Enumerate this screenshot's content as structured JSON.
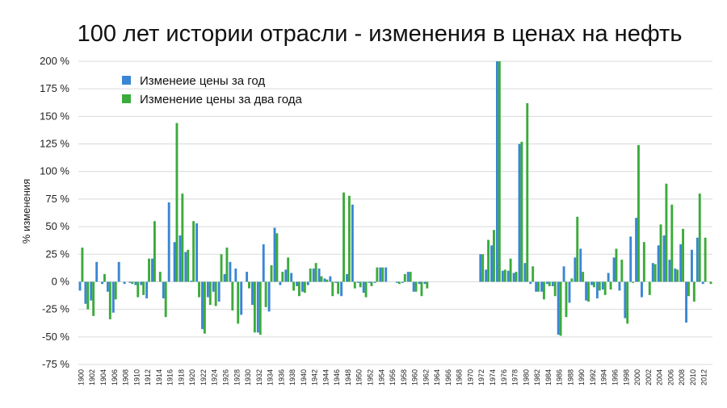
{
  "chart_data": {
    "type": "bar",
    "title": "100 лет истории отрасли - изменения в ценах на нефть",
    "ylabel": "% изменения",
    "xlabel": "",
    "ylim": [
      -75,
      200
    ],
    "yticks": [
      200,
      175,
      150,
      125,
      100,
      75,
      50,
      25,
      0,
      -25,
      -50,
      -75
    ],
    "ytick_suffix": " %",
    "grid": true,
    "legend_position": "top-left",
    "x": [
      1900,
      1901,
      1902,
      1903,
      1904,
      1905,
      1906,
      1907,
      1908,
      1909,
      1910,
      1911,
      1912,
      1913,
      1914,
      1915,
      1916,
      1917,
      1918,
      1919,
      1920,
      1921,
      1922,
      1923,
      1924,
      1925,
      1926,
      1927,
      1928,
      1929,
      1930,
      1931,
      1932,
      1933,
      1934,
      1935,
      1936,
      1937,
      1938,
      1939,
      1940,
      1941,
      1942,
      1943,
      1944,
      1945,
      1946,
      1947,
      1948,
      1949,
      1950,
      1951,
      1952,
      1953,
      1954,
      1955,
      1956,
      1957,
      1958,
      1959,
      1960,
      1961,
      1962,
      1963,
      1964,
      1965,
      1966,
      1967,
      1968,
      1969,
      1970,
      1971,
      1972,
      1973,
      1974,
      1975,
      1976,
      1977,
      1978,
      1979,
      1980,
      1981,
      1982,
      1983,
      1984,
      1985,
      1986,
      1987,
      1988,
      1989,
      1990,
      1991,
      1992,
      1993,
      1994,
      1995,
      1996,
      1997,
      1998,
      1999,
      2000,
      2001,
      2002,
      2003,
      2004,
      2005,
      2006,
      2007,
      2008,
      2009,
      2010,
      2011,
      2012,
      2013
    ],
    "x_tick_labels": [
      "1900",
      "1902",
      "1904",
      "1906",
      "1908",
      "1910",
      "1912",
      "1914",
      "1916",
      "1918",
      "1920",
      "1922",
      "1924",
      "1926",
      "1928",
      "1930",
      "1932",
      "1934",
      "1936",
      "1938",
      "1940",
      "1942",
      "1944",
      "1946",
      "1948",
      "1950",
      "1952",
      "1954",
      "1956",
      "1958",
      "1960",
      "1962",
      "1964",
      "1966",
      "1968",
      "1970",
      "1972",
      "1974",
      "1976",
      "1978",
      "1980",
      "1982",
      "1984",
      "1986",
      "1988",
      "1990",
      "1992",
      "1994",
      "1996",
      "1998",
      "2000",
      "2002",
      "2004",
      "2006",
      "2008",
      "2010",
      "2012"
    ],
    "series": [
      {
        "name": "Изменеие цены за год",
        "color": "#3a86d4",
        "values": [
          -8,
          -20,
          -17,
          18,
          -2,
          -9,
          -28,
          18,
          -2,
          -1,
          -3,
          -3,
          -15,
          21,
          0,
          -15,
          72,
          36,
          42,
          27,
          1,
          53,
          -43,
          -14,
          -9,
          -18,
          7,
          18,
          12,
          -30,
          9,
          -21,
          -46,
          34,
          -27,
          49,
          -3,
          11,
          8,
          -4,
          -9,
          -3,
          12,
          12,
          3,
          5,
          -1,
          -13,
          7,
          70,
          -1,
          -10,
          -1,
          -1,
          13,
          13,
          0,
          -1,
          -1,
          9,
          -9,
          -2,
          -2,
          0,
          0,
          0,
          0,
          0,
          0,
          0,
          0,
          0,
          25,
          11,
          33,
          200,
          10,
          10,
          8,
          125,
          17,
          -2,
          -9,
          -9,
          -2,
          -4,
          -48,
          14,
          -19,
          22,
          30,
          -17,
          -3,
          -15,
          -7,
          8,
          22,
          -8,
          -33,
          41,
          58,
          -14,
          0,
          17,
          33,
          42,
          20,
          12,
          34,
          -37,
          29,
          40,
          -2,
          0
        ]
      },
      {
        "name": "Изменение цены за два года",
        "color": "#3bab3b",
        "values": [
          31,
          -25,
          -31,
          0,
          7,
          -34,
          -16,
          0,
          0,
          -2,
          -14,
          -12,
          21,
          55,
          9,
          -32,
          0,
          144,
          80,
          29,
          55,
          -14,
          -47,
          -21,
          -22,
          25,
          31,
          -26,
          -38,
          0,
          -6,
          -46,
          -48,
          -23,
          15,
          44,
          9,
          22,
          -8,
          -13,
          -10,
          12,
          17,
          5,
          2,
          -13,
          -11,
          81,
          78,
          -6,
          -5,
          -14,
          -4,
          13,
          13,
          0,
          0,
          -2,
          7,
          9,
          -9,
          -13,
          -6,
          0,
          0,
          0,
          0,
          0,
          0,
          0,
          0,
          0,
          25,
          38,
          47,
          200,
          11,
          21,
          9,
          127,
          162,
          14,
          -9,
          -16,
          -4,
          -13,
          -49,
          -32,
          3,
          59,
          9,
          -18,
          -5,
          -8,
          -12,
          -7,
          30,
          20,
          -38,
          -1,
          124,
          36,
          -12,
          16,
          52,
          89,
          70,
          11,
          48,
          -13,
          -18,
          80,
          40,
          -2
        ]
      }
    ]
  }
}
